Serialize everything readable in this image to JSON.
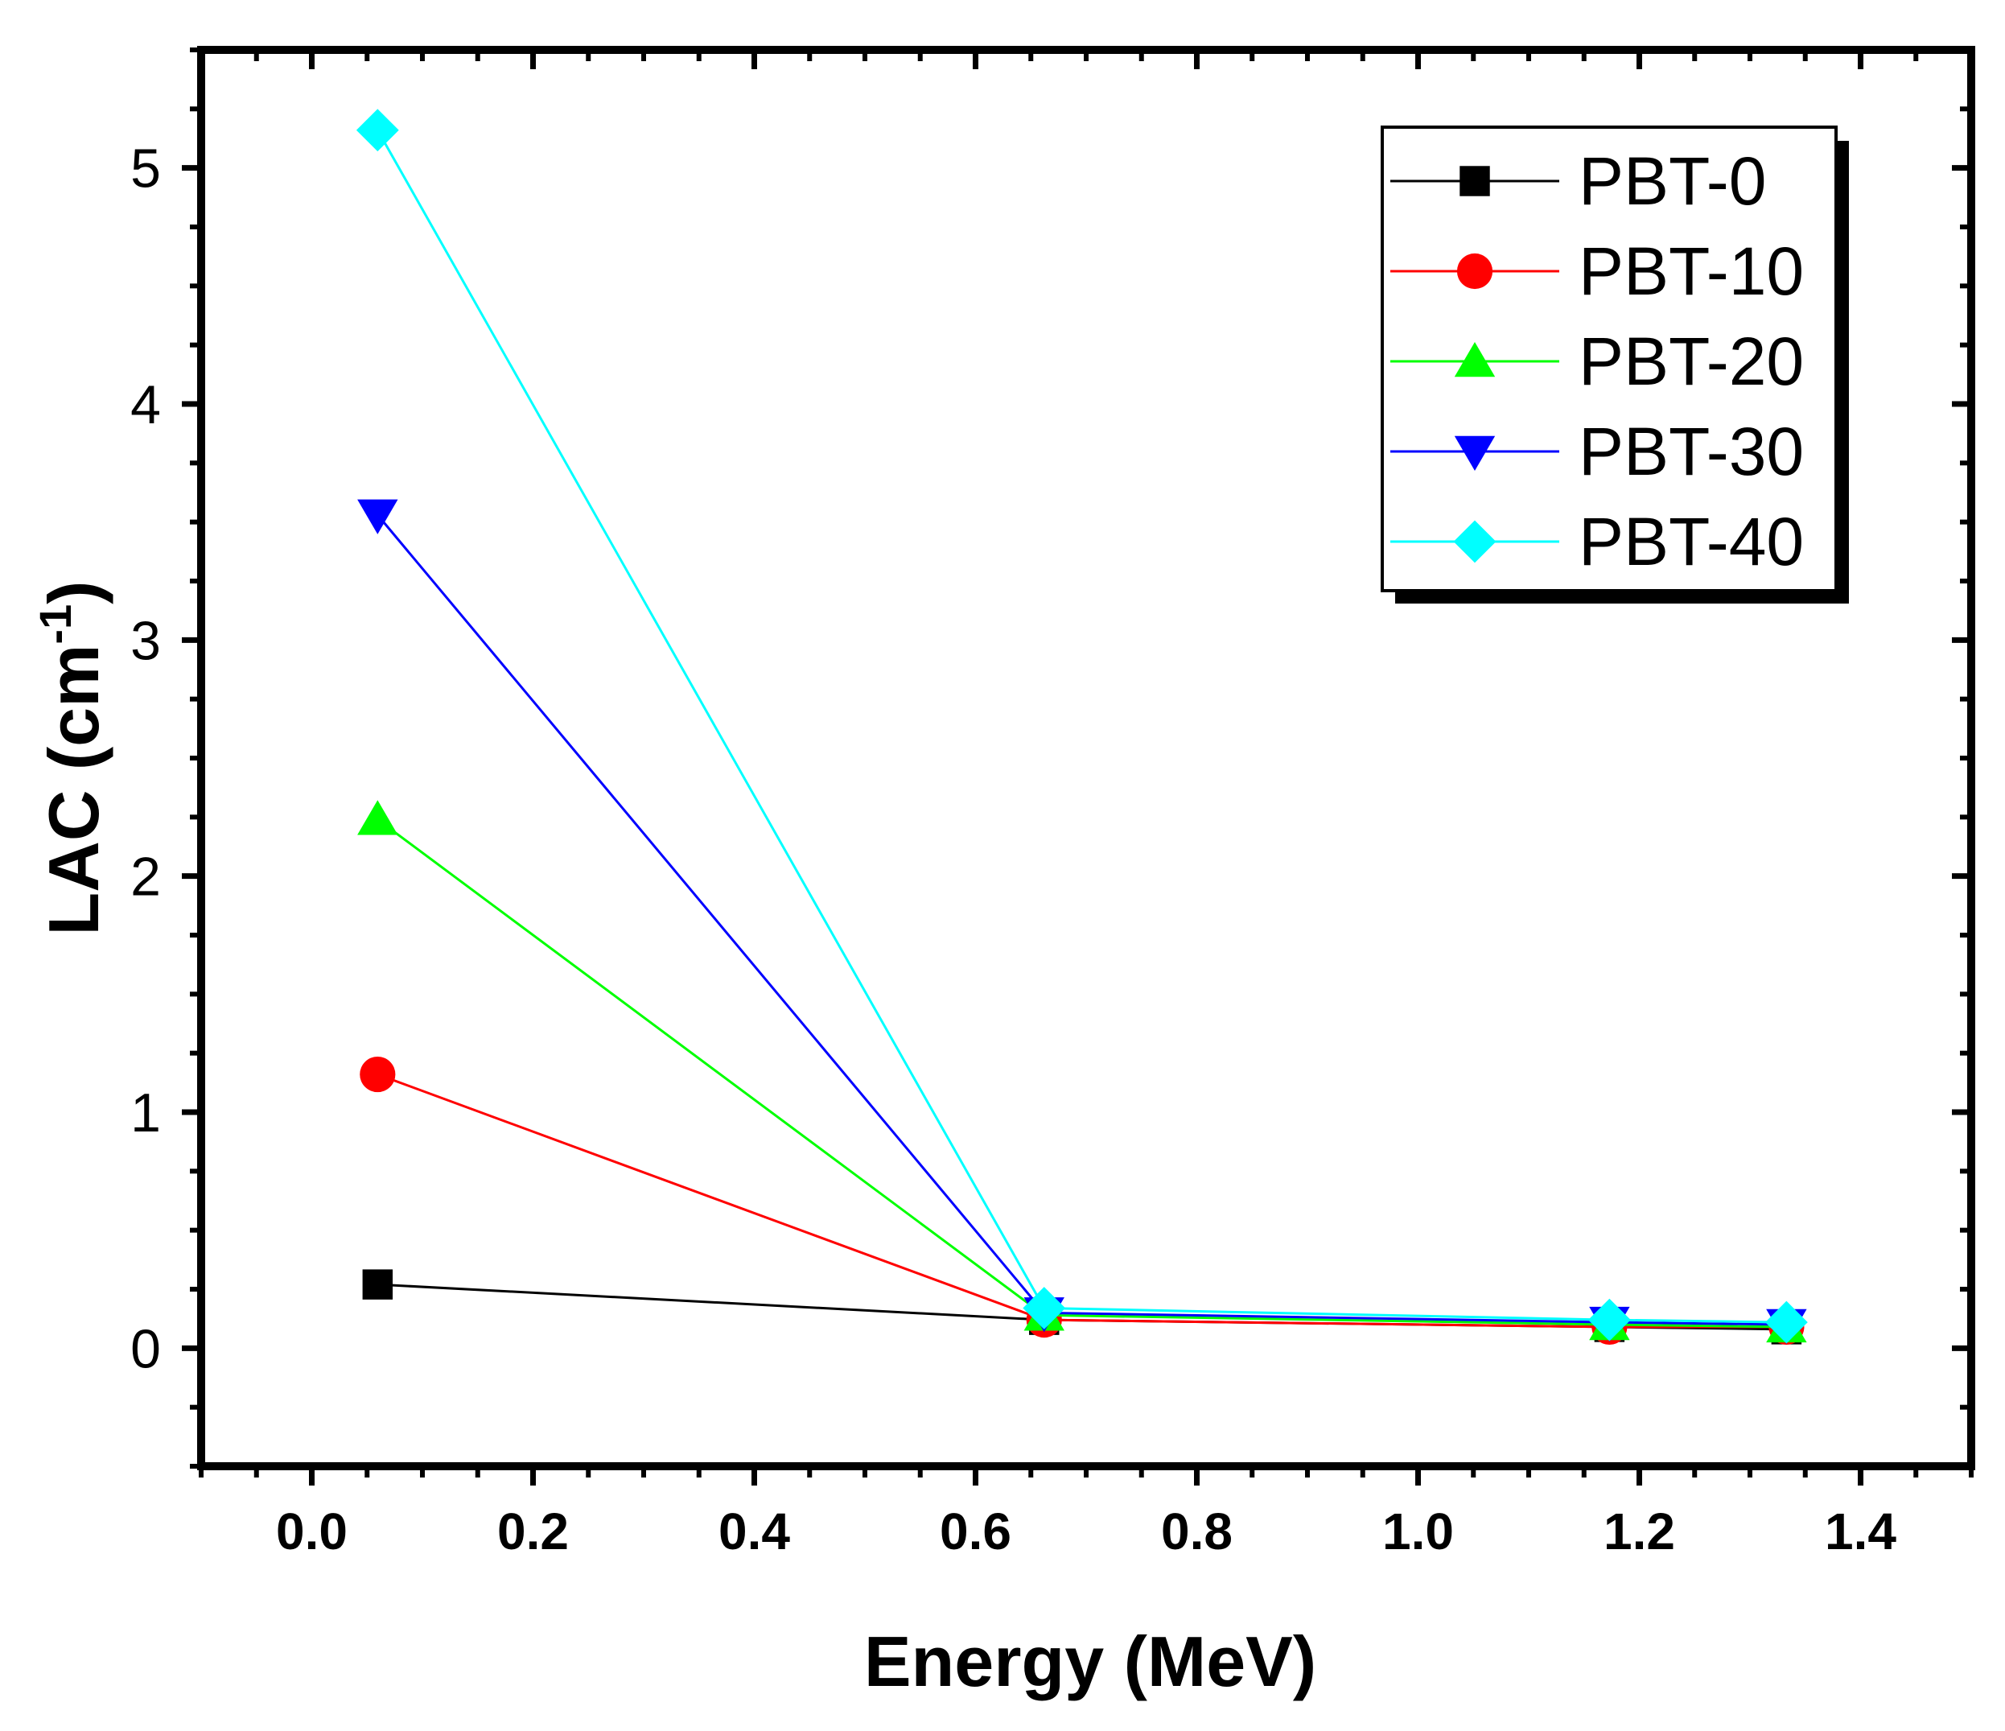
{
  "chart_data": {
    "type": "line",
    "title": "",
    "xlabel": "Energy (MeV)",
    "ylabel": "LAC (cm⁻¹)",
    "ylabel_parts": {
      "main": "LAC (cm",
      "superscript": "-1",
      "close": ")"
    },
    "xlim": [
      -0.1,
      1.5
    ],
    "ylim": [
      -0.5,
      5.5
    ],
    "xticks": [
      0.0,
      0.2,
      0.4,
      0.6,
      0.8,
      1.0,
      1.2,
      1.4
    ],
    "xtick_labels": [
      "0.0",
      "0.2",
      "0.4",
      "0.6",
      "0.8",
      "1.0",
      "1.2",
      "1.4"
    ],
    "yticks": [
      0,
      1,
      2,
      3,
      4,
      5
    ],
    "ytick_labels": [
      "0",
      "1",
      "2",
      "3",
      "4",
      "5"
    ],
    "grid": false,
    "legend_position": "top-right",
    "x": [
      0.0595,
      0.662,
      1.173,
      1.333
    ],
    "series": [
      {
        "name": "PBT-0",
        "marker": "square",
        "color": "#000000",
        "values": [
          0.27,
          0.12,
          0.09,
          0.08
        ]
      },
      {
        "name": "PBT-10",
        "marker": "circle",
        "color": "#ff0000",
        "values": [
          1.16,
          0.12,
          0.09,
          0.09
        ]
      },
      {
        "name": "PBT-20",
        "marker": "triangle-up",
        "color": "#00ff00",
        "values": [
          2.24,
          0.14,
          0.1,
          0.09
        ]
      },
      {
        "name": "PBT-30",
        "marker": "triangle-down",
        "color": "#0000ff",
        "values": [
          3.53,
          0.15,
          0.11,
          0.1
        ]
      },
      {
        "name": "PBT-40",
        "marker": "diamond",
        "color": "#00ffff",
        "values": [
          5.16,
          0.17,
          0.12,
          0.11
        ]
      }
    ]
  }
}
